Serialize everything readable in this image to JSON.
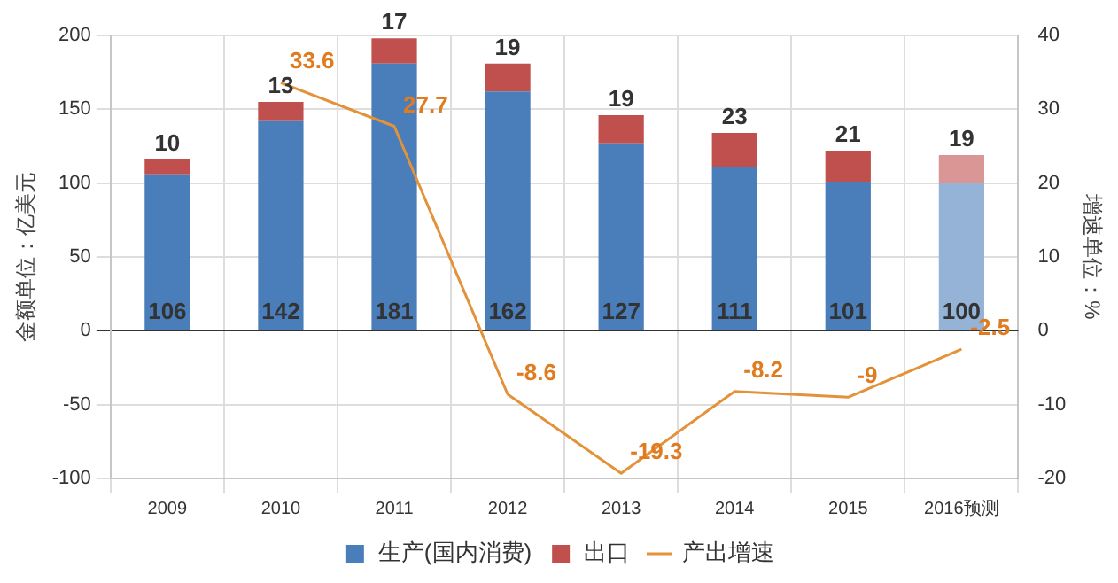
{
  "chart_data": {
    "type": "bar",
    "stacked": true,
    "categories": [
      "2009",
      "2010",
      "2011",
      "2012",
      "2013",
      "2014",
      "2015",
      "2016预测"
    ],
    "series": [
      {
        "name": "生产(国内消费)",
        "color": "#4a7ebb",
        "colors": [
          "#4a7ebb",
          "#4a7ebb",
          "#4a7ebb",
          "#4a7ebb",
          "#4a7ebb",
          "#4a7ebb",
          "#4a7ebb",
          "#95b3d7"
        ],
        "values": [
          106,
          142,
          181,
          162,
          127,
          111,
          101,
          100
        ]
      },
      {
        "name": "出口",
        "color": "#c0504d",
        "colors": [
          "#c0504d",
          "#c0504d",
          "#c0504d",
          "#c0504d",
          "#c0504d",
          "#c0504d",
          "#c0504d",
          "#d99694"
        ],
        "values": [
          10,
          13,
          17,
          19,
          19,
          23,
          21,
          19
        ]
      },
      {
        "name": "产出增速",
        "type": "line",
        "axis": "y2",
        "color": "#e3923a",
        "values": [
          null,
          33.6,
          27.7,
          -8.6,
          -19.3,
          -8.2,
          -9,
          -2.5
        ]
      }
    ],
    "ylabel": "金额单位：亿美元",
    "y2label": "增速单位：%",
    "ylim": [
      -100,
      200
    ],
    "yticks": [
      -100,
      -50,
      0,
      50,
      100,
      150,
      200
    ],
    "y2lim": [
      -20,
      40
    ],
    "y2ticks": [
      -20,
      -10,
      0,
      10,
      20,
      30,
      40
    ],
    "grid": true,
    "legend": "bottom",
    "data_labels": true,
    "marker": "none"
  }
}
